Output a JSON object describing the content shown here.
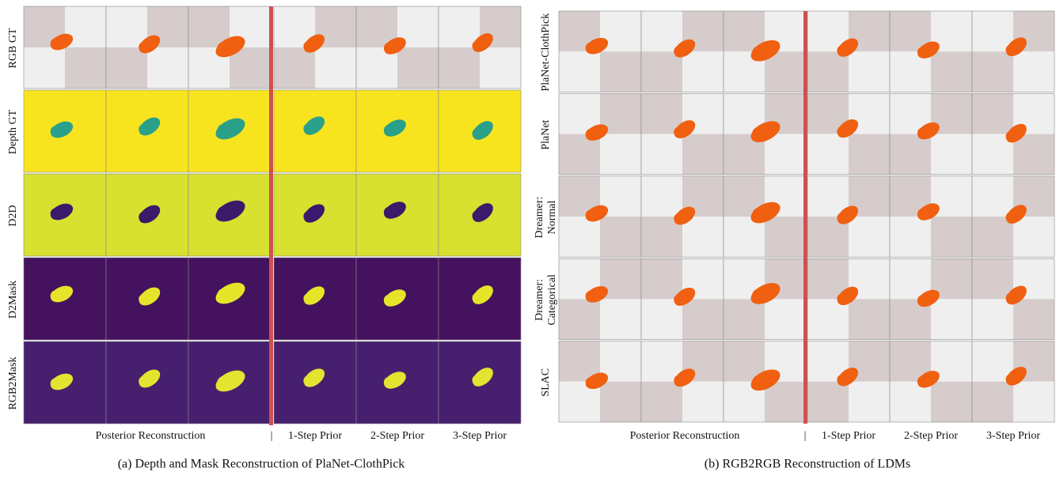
{
  "panel_a": {
    "row_labels": [
      "RGB GT",
      "Depth GT",
      "D2D",
      "D2Mask",
      "RGB2Mask"
    ],
    "column_labels": [
      "Posterior Reconstruction",
      "|",
      "1-Step Prior",
      "2-Step Prior",
      "3-Step Prior"
    ],
    "caption": "(a) Depth and Mask Reconstruction of PlaNet-ClothPick"
  },
  "panel_b": {
    "row_labels": [
      "PlaNet-ClothPick",
      "PlaNet",
      [
        "Dreamer:",
        "Normal"
      ],
      [
        "Dreamer:",
        "Categorical"
      ],
      "SLAC"
    ],
    "column_labels": [
      "Posterior Reconstruction",
      "|",
      "1-Step Prior",
      "2-Step Prior",
      "3-Step Prior"
    ],
    "caption": "(b) RGB2RGB Reconstruction of LDMs"
  }
}
